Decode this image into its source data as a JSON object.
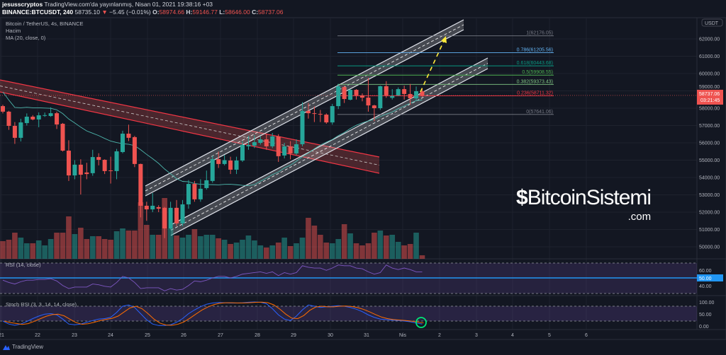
{
  "header": {
    "user": "jesusscryptos",
    "published": "TradingView.com'da yayınlanmış, Nisan 01, 2021 19:38:16 +03",
    "symbol": "BINANCE:BTCUSDT, 240",
    "last": "58735.10",
    "change": "−5.45 (−0.01%)",
    "o_label": "O:",
    "o": "58974.66",
    "h_label": "H:",
    "h": "59146.77",
    "l_label": "L:",
    "l": "58646.00",
    "c_label": "C:",
    "c": "58737.06"
  },
  "legend": {
    "title": "Bitcoin / TetherUS, 4s, BINANCE",
    "volume": "Hacim",
    "ma": "MA (20, close, 0)",
    "rsi": "RSI (14, close)",
    "stoch": "Stoch RSI (3, 3, 14, 14, close)"
  },
  "price_axis": {
    "currency": "USDT",
    "labels": [
      "62000.00",
      "61000.00",
      "60000.00",
      "59000.00",
      "58000.00",
      "57000.00",
      "56000.00",
      "55000.00",
      "54000.00",
      "53000.00",
      "52000.00",
      "51000.00",
      "50000.00"
    ],
    "current_price": "58737.06",
    "countdown": "03:21:45"
  },
  "rsi_axis": {
    "labels": [
      "60.00",
      "50.00",
      "40.00"
    ]
  },
  "stoch_axis": {
    "labels": [
      "100.00",
      "50.00",
      "0.00"
    ]
  },
  "date_axis": [
    "21",
    "22",
    "23",
    "24",
    "25",
    "26",
    "27",
    "28",
    "29",
    "30",
    "31",
    "Nis",
    "2",
    "3",
    "4",
    "5",
    "6"
  ],
  "fib_levels": [
    {
      "label": "1(62176.05)",
      "price": 62176.05,
      "color": "#787b86"
    },
    {
      "label": "0.786(61205.56)",
      "price": 61205.56,
      "color": "#64b5f6"
    },
    {
      "label": "0.618(60443.68)",
      "price": 60443.68,
      "color": "#089981"
    },
    {
      "label": "0.5(59908.55)",
      "price": 59908.55,
      "color": "#4caf50"
    },
    {
      "label": "0.382(59373.43)",
      "price": 59373.43,
      "color": "#81c784"
    },
    {
      "label": "0.236(58711.32)",
      "price": 58711.32,
      "color": "#f23645"
    },
    {
      "label": "0(57641.06)",
      "price": 57641.06,
      "color": "#787b86"
    }
  ],
  "colors": {
    "up": "#26a69a",
    "down": "#ef5350",
    "background": "#131722",
    "rsi": "#7e57c2",
    "stoch_k": "#2962ff",
    "stoch_d": "#ff6d00",
    "ma": "#4db6ac"
  },
  "footer": {
    "brand": "TradingView"
  },
  "watermark": {
    "name": "BitcoinSistemi",
    "domain": ".com"
  },
  "chart_data": {
    "type": "candlestick",
    "interval": "4h",
    "ohlc": [
      [
        58120,
        58200,
        57700,
        57800
      ],
      [
        57800,
        57850,
        56750,
        56980
      ],
      [
        56980,
        57200,
        55940,
        56290
      ],
      [
        56290,
        57390,
        56080,
        57180
      ],
      [
        57140,
        57700,
        57000,
        57510
      ],
      [
        57510,
        57600,
        57300,
        57350
      ],
      [
        57350,
        57760,
        56900,
        57590
      ],
      [
        57590,
        57750,
        57500,
        57600
      ],
      [
        57550,
        58050,
        57500,
        57710
      ],
      [
        57710,
        57800,
        56800,
        57060
      ],
      [
        57100,
        57150,
        55500,
        55550
      ],
      [
        55550,
        56150,
        53800,
        54120
      ],
      [
        54120,
        55000,
        53900,
        54740
      ],
      [
        54740,
        55050,
        53020,
        54160
      ],
      [
        54290,
        54850,
        53900,
        54200
      ],
      [
        54250,
        55600,
        54100,
        55180
      ],
      [
        55180,
        55400,
        54700,
        55020
      ],
      [
        55020,
        55050,
        54200,
        54370
      ],
      [
        54410,
        55200,
        53650,
        54400
      ],
      [
        54370,
        55650,
        53900,
        55510
      ],
      [
        55470,
        56700,
        55400,
        56530
      ],
      [
        56530,
        57050,
        56100,
        56290
      ],
      [
        56330,
        56400,
        54600,
        54780
      ],
      [
        54780,
        54800,
        51700,
        52370
      ],
      [
        52370,
        52600,
        51500,
        52160
      ],
      [
        52160,
        53100,
        52000,
        52370
      ],
      [
        52290,
        52400,
        52000,
        52200
      ],
      [
        52250,
        52300,
        50500,
        51060
      ],
      [
        51060,
        52600,
        51000,
        52250
      ],
      [
        52250,
        52700,
        51200,
        51350
      ],
      [
        51350,
        52700,
        51200,
        52450
      ],
      [
        52450,
        53850,
        52200,
        53630
      ],
      [
        53630,
        53800,
        52600,
        52740
      ],
      [
        52740,
        53900,
        52600,
        53350
      ],
      [
        53390,
        54400,
        53300,
        53840
      ],
      [
        53800,
        55250,
        53700,
        55060
      ],
      [
        55060,
        55500,
        54550,
        54780
      ],
      [
        54780,
        55300,
        54700,
        55000
      ],
      [
        54980,
        55200,
        54200,
        54450
      ],
      [
        54450,
        55200,
        54200,
        54980
      ],
      [
        54980,
        56100,
        54900,
        55880
      ],
      [
        55800,
        56400,
        55600,
        55880
      ],
      [
        55840,
        56450,
        55700,
        56040
      ],
      [
        56000,
        56400,
        55900,
        56200
      ],
      [
        56200,
        56500,
        55600,
        55800
      ],
      [
        55800,
        56570,
        55700,
        56370
      ],
      [
        56370,
        56500,
        54900,
        55230
      ],
      [
        55270,
        56000,
        55100,
        55800
      ],
      [
        55800,
        56100,
        55050,
        55390
      ],
      [
        55390,
        56200,
        55300,
        55920
      ],
      [
        55920,
        58350,
        55800,
        57840
      ],
      [
        57840,
        58300,
        57400,
        57710
      ],
      [
        57710,
        58100,
        57200,
        57670
      ],
      [
        57670,
        57900,
        57200,
        57630
      ],
      [
        57630,
        57700,
        57100,
        57180
      ],
      [
        57180,
        58250,
        57050,
        58120
      ],
      [
        58120,
        59400,
        57950,
        59270
      ],
      [
        59220,
        59300,
        58300,
        58530
      ],
      [
        58490,
        59100,
        58450,
        59060
      ],
      [
        59060,
        59100,
        58500,
        58740
      ],
      [
        58740,
        58850,
        58400,
        58610
      ],
      [
        58610,
        59750,
        57800,
        58160
      ],
      [
        58160,
        58200,
        57250,
        58000
      ],
      [
        58000,
        59300,
        57900,
        59270
      ],
      [
        59270,
        59560,
        58600,
        58740
      ],
      [
        58600,
        59100,
        58500,
        58700
      ],
      [
        58740,
        59200,
        58700,
        59100
      ],
      [
        59100,
        59300,
        58500,
        58820
      ],
      [
        58820,
        59400,
        58200,
        58570
      ],
      [
        58570,
        59250,
        58450,
        58980
      ],
      [
        58974.66,
        59146.77,
        58646.0,
        58737.06
      ]
    ],
    "volume_relative": [
      25,
      27,
      37,
      30,
      22,
      22,
      26,
      19,
      28,
      37,
      37,
      60,
      35,
      44,
      28,
      32,
      32,
      28,
      27,
      39,
      43,
      40,
      40,
      80,
      48,
      34,
      34,
      86,
      43,
      33,
      30,
      34,
      42,
      32,
      34,
      34,
      29,
      27,
      21,
      23,
      27,
      33,
      26,
      19,
      16,
      19,
      23,
      30,
      18,
      22,
      30,
      58,
      47,
      34,
      23,
      22,
      28,
      49,
      36,
      22,
      19,
      22,
      37,
      40,
      33,
      34,
      24,
      19,
      21,
      37,
      5
    ],
    "rsi": [
      47,
      44,
      42,
      45,
      47,
      47,
      48,
      48,
      49,
      46,
      40,
      36,
      38,
      38,
      38,
      42,
      41,
      39,
      38,
      44,
      52,
      50,
      44,
      36,
      37,
      37,
      37,
      33,
      36,
      34,
      35,
      40,
      46,
      45,
      47,
      50,
      52,
      52,
      50,
      52,
      55,
      56,
      57,
      58,
      56,
      58,
      53,
      57,
      55,
      57,
      66,
      64,
      63,
      63,
      60,
      63,
      67,
      66,
      66,
      63,
      62,
      58,
      55,
      57,
      67,
      63,
      61,
      63,
      61,
      58,
      58
    ],
    "stoch_k": [
      20,
      8,
      3,
      8,
      18,
      30,
      40,
      48,
      50,
      45,
      28,
      8,
      5,
      8,
      15,
      22,
      28,
      30,
      35,
      55,
      80,
      85,
      75,
      50,
      25,
      8,
      2,
      2,
      5,
      15,
      30,
      50,
      65,
      78,
      88,
      93,
      95,
      94,
      93,
      93,
      94,
      96,
      97,
      96,
      90,
      70,
      45,
      28,
      22,
      40,
      65,
      85,
      80,
      75,
      78,
      80,
      82,
      80,
      75,
      68,
      58,
      45,
      35,
      28,
      26,
      24,
      22,
      20,
      17,
      12,
      8
    ],
    "price_range": [
      49500,
      63000
    ],
    "rsi_levels": [
      70,
      50,
      30
    ],
    "stoch_levels": [
      80,
      20
    ]
  }
}
